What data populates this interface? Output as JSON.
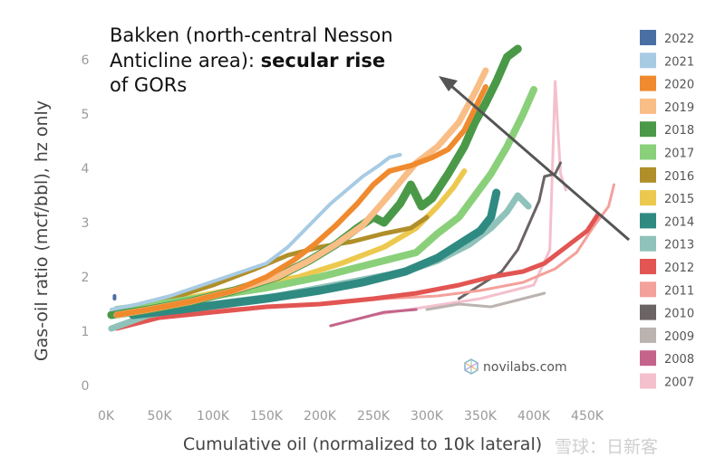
{
  "chart_data": {
    "type": "line",
    "xlabel": "Cumulative oil (normalized to 10k lateral)",
    "ylabel": "Gas-oil ratio (mcf/bbl), hz only",
    "xlim": [
      0,
      460000
    ],
    "ylim": [
      0,
      6.3
    ],
    "x_ticks": [
      0,
      50000,
      100000,
      150000,
      200000,
      250000,
      300000,
      350000,
      400000,
      450000
    ],
    "x_tick_labels": [
      "0K",
      "50K",
      "100K",
      "150K",
      "200K",
      "250K",
      "300K",
      "350K",
      "400K",
      "450K"
    ],
    "y_ticks": [
      0,
      1,
      2,
      3,
      4,
      5,
      6
    ],
    "y_tick_labels": [
      "0",
      "1",
      "2",
      "3",
      "4",
      "5",
      "6"
    ],
    "grid": false,
    "legend_position": "right",
    "annotation": {
      "line1": "Bakken (north-central Nesson",
      "line2_normal": "Anticline area): ",
      "line2_bold": "secular rise",
      "line3": "of GORs"
    },
    "watermark": "novilabs.com",
    "watermark2": "雪球：日新客",
    "series": [
      {
        "name": "2022",
        "color": "#4a6fa5",
        "width": 4,
        "points": [
          [
            8000,
            1.65
          ],
          [
            8000,
            1.6
          ]
        ]
      },
      {
        "name": "2021",
        "color": "#a8cbe4",
        "width": 4,
        "points": [
          [
            5000,
            1.4
          ],
          [
            30000,
            1.5
          ],
          [
            60000,
            1.65
          ],
          [
            90000,
            1.85
          ],
          [
            120000,
            2.05
          ],
          [
            150000,
            2.25
          ],
          [
            170000,
            2.55
          ],
          [
            190000,
            2.95
          ],
          [
            210000,
            3.35
          ],
          [
            225000,
            3.6
          ],
          [
            240000,
            3.85
          ],
          [
            255000,
            4.05
          ],
          [
            265000,
            4.2
          ],
          [
            275000,
            4.25
          ]
        ]
      },
      {
        "name": "2020",
        "color": "#f08a2e",
        "width": 6,
        "points": [
          [
            10000,
            1.3
          ],
          [
            40000,
            1.4
          ],
          [
            80000,
            1.55
          ],
          [
            120000,
            1.75
          ],
          [
            150000,
            2.0
          ],
          [
            175000,
            2.3
          ],
          [
            195000,
            2.6
          ],
          [
            215000,
            2.95
          ],
          [
            235000,
            3.35
          ],
          [
            250000,
            3.7
          ],
          [
            265000,
            3.95
          ],
          [
            285000,
            4.05
          ],
          [
            305000,
            4.2
          ],
          [
            320000,
            4.35
          ],
          [
            335000,
            4.7
          ],
          [
            345000,
            5.1
          ],
          [
            355000,
            5.5
          ]
        ]
      },
      {
        "name": "2019",
        "color": "#f9bd86",
        "width": 7,
        "points": [
          [
            10000,
            1.3
          ],
          [
            40000,
            1.4
          ],
          [
            80000,
            1.55
          ],
          [
            120000,
            1.75
          ],
          [
            160000,
            2.0
          ],
          [
            190000,
            2.3
          ],
          [
            215000,
            2.6
          ],
          [
            240000,
            2.95
          ],
          [
            260000,
            3.4
          ],
          [
            275000,
            3.75
          ],
          [
            290000,
            4.1
          ],
          [
            310000,
            4.4
          ],
          [
            330000,
            4.85
          ],
          [
            345000,
            5.4
          ],
          [
            355000,
            5.8
          ]
        ]
      },
      {
        "name": "2018",
        "color": "#4a9948",
        "width": 9,
        "points": [
          [
            5000,
            1.3
          ],
          [
            40000,
            1.4
          ],
          [
            80000,
            1.55
          ],
          [
            120000,
            1.75
          ],
          [
            160000,
            2.0
          ],
          [
            190000,
            2.3
          ],
          [
            215000,
            2.6
          ],
          [
            235000,
            2.9
          ],
          [
            250000,
            3.1
          ],
          [
            260000,
            3.0
          ],
          [
            275000,
            3.35
          ],
          [
            285000,
            3.7
          ],
          [
            295000,
            3.3
          ],
          [
            305000,
            3.45
          ],
          [
            320000,
            3.9
          ],
          [
            335000,
            4.4
          ],
          [
            345000,
            4.85
          ],
          [
            355000,
            5.2
          ],
          [
            365000,
            5.6
          ],
          [
            375000,
            6.05
          ],
          [
            385000,
            6.2
          ]
        ]
      },
      {
        "name": "2017",
        "color": "#8ad07a",
        "width": 8,
        "points": [
          [
            10000,
            1.4
          ],
          [
            50000,
            1.5
          ],
          [
            100000,
            1.65
          ],
          [
            150000,
            1.8
          ],
          [
            200000,
            2.0
          ],
          [
            250000,
            2.25
          ],
          [
            290000,
            2.45
          ],
          [
            310000,
            2.8
          ],
          [
            330000,
            3.1
          ],
          [
            345000,
            3.5
          ],
          [
            360000,
            3.9
          ],
          [
            375000,
            4.4
          ],
          [
            390000,
            5.0
          ],
          [
            400000,
            5.45
          ]
        ]
      },
      {
        "name": "2016",
        "color": "#b08f2a",
        "width": 5,
        "points": [
          [
            20000,
            1.4
          ],
          [
            60000,
            1.6
          ],
          [
            100000,
            1.85
          ],
          [
            140000,
            2.15
          ],
          [
            170000,
            2.4
          ],
          [
            200000,
            2.55
          ],
          [
            230000,
            2.65
          ],
          [
            260000,
            2.8
          ],
          [
            285000,
            2.9
          ],
          [
            300000,
            3.1
          ]
        ]
      },
      {
        "name": "2015",
        "color": "#ecc94e",
        "width": 6,
        "points": [
          [
            20000,
            1.4
          ],
          [
            60000,
            1.55
          ],
          [
            100000,
            1.7
          ],
          [
            140000,
            1.85
          ],
          [
            180000,
            2.0
          ],
          [
            220000,
            2.25
          ],
          [
            260000,
            2.55
          ],
          [
            290000,
            2.9
          ],
          [
            310000,
            3.3
          ],
          [
            325000,
            3.65
          ],
          [
            335000,
            3.95
          ]
        ]
      },
      {
        "name": "2014",
        "color": "#2f8a82",
        "width": 9,
        "points": [
          [
            25000,
            1.3
          ],
          [
            70000,
            1.4
          ],
          [
            110000,
            1.5
          ],
          [
            150000,
            1.6
          ],
          [
            200000,
            1.75
          ],
          [
            240000,
            1.9
          ],
          [
            280000,
            2.1
          ],
          [
            310000,
            2.35
          ],
          [
            330000,
            2.6
          ],
          [
            350000,
            2.85
          ],
          [
            360000,
            3.1
          ],
          [
            365000,
            3.55
          ]
        ]
      },
      {
        "name": "2013",
        "color": "#8fc2ba",
        "width": 7,
        "points": [
          [
            5000,
            1.05
          ],
          [
            40000,
            1.3
          ],
          [
            80000,
            1.45
          ],
          [
            120000,
            1.55
          ],
          [
            160000,
            1.65
          ],
          [
            200000,
            1.8
          ],
          [
            240000,
            1.95
          ],
          [
            280000,
            2.1
          ],
          [
            310000,
            2.3
          ],
          [
            340000,
            2.6
          ],
          [
            360000,
            2.9
          ],
          [
            375000,
            3.2
          ],
          [
            385000,
            3.5
          ],
          [
            395000,
            3.3
          ]
        ]
      },
      {
        "name": "2012",
        "color": "#e25552",
        "width": 5,
        "points": [
          [
            10000,
            1.05
          ],
          [
            50000,
            1.25
          ],
          [
            100000,
            1.35
          ],
          [
            150000,
            1.45
          ],
          [
            200000,
            1.5
          ],
          [
            250000,
            1.6
          ],
          [
            290000,
            1.7
          ],
          [
            330000,
            1.85
          ],
          [
            360000,
            2.0
          ],
          [
            390000,
            2.1
          ],
          [
            410000,
            2.25
          ],
          [
            430000,
            2.55
          ],
          [
            450000,
            2.85
          ],
          [
            460000,
            3.15
          ]
        ]
      },
      {
        "name": "2011",
        "color": "#f4a09b",
        "width": 3,
        "points": [
          [
            40000,
            1.35
          ],
          [
            100000,
            1.4
          ],
          [
            160000,
            1.45
          ],
          [
            210000,
            1.5
          ],
          [
            260000,
            1.6
          ],
          [
            310000,
            1.65
          ],
          [
            350000,
            1.75
          ],
          [
            390000,
            1.9
          ],
          [
            420000,
            2.15
          ],
          [
            440000,
            2.45
          ],
          [
            455000,
            2.9
          ],
          [
            470000,
            3.3
          ],
          [
            475000,
            3.7
          ]
        ]
      },
      {
        "name": "2010",
        "color": "#6b6464",
        "width": 3,
        "points": [
          [
            330000,
            1.6
          ],
          [
            350000,
            1.85
          ],
          [
            370000,
            2.1
          ],
          [
            385000,
            2.5
          ],
          [
            395000,
            2.95
          ],
          [
            405000,
            3.4
          ],
          [
            410000,
            3.85
          ],
          [
            420000,
            3.9
          ],
          [
            425000,
            4.1
          ]
        ]
      },
      {
        "name": "2009",
        "color": "#bbb3b0",
        "width": 3,
        "points": [
          [
            300000,
            1.4
          ],
          [
            330000,
            1.5
          ],
          [
            360000,
            1.45
          ],
          [
            390000,
            1.6
          ],
          [
            410000,
            1.7
          ]
        ]
      },
      {
        "name": "2008",
        "color": "#c4648a",
        "width": 3,
        "points": [
          [
            210000,
            1.1
          ],
          [
            240000,
            1.25
          ],
          [
            260000,
            1.35
          ],
          [
            290000,
            1.4
          ]
        ]
      },
      {
        "name": "2007",
        "color": "#f4c0ce",
        "width": 3,
        "points": [
          [
            250000,
            1.3
          ],
          [
            300000,
            1.45
          ],
          [
            350000,
            1.6
          ],
          [
            400000,
            1.85
          ],
          [
            415000,
            2.5
          ],
          [
            420000,
            5.6
          ],
          [
            425000,
            3.9
          ],
          [
            430000,
            3.6
          ]
        ]
      }
    ]
  }
}
